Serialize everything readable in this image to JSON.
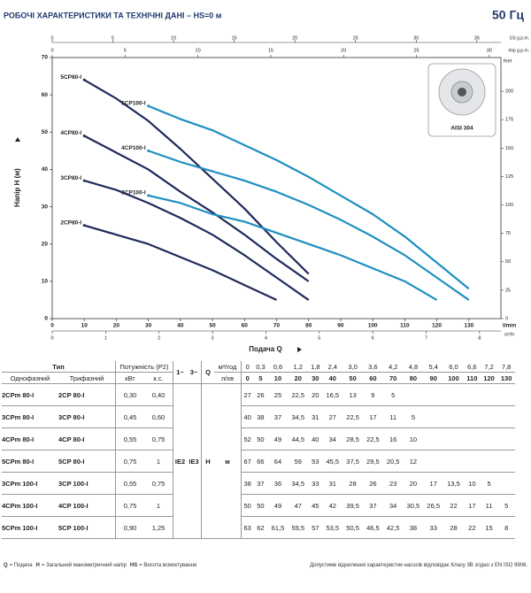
{
  "header": {
    "title": "РОБОЧІ ХАРАКТЕРИСТИКИ ТА ТЕХНІЧНІ ДАНІ – HS=0 м",
    "frequency": "50 Гц"
  },
  "chart_data": {
    "type": "line",
    "x_label": "Подача Q",
    "y_label": "Напір H (м)",
    "x_unit": "l/min",
    "xlim": [
      0,
      140
    ],
    "xticks": [
      0,
      10,
      20,
      30,
      40,
      50,
      60,
      70,
      80,
      90,
      100,
      110,
      120,
      130
    ],
    "ylim": [
      0,
      70
    ],
    "yticks": [
      0,
      10,
      20,
      30,
      40,
      50,
      60,
      70
    ],
    "grid": false,
    "secondary_axes": [
      {
        "position": "top",
        "unit": "US g.p.m.",
        "lim": [
          0,
          36.98
        ],
        "ticks": [
          0,
          5,
          10,
          15,
          20,
          25,
          30,
          35
        ]
      },
      {
        "position": "top",
        "unit": "Imp g.p.m.",
        "lim": [
          0,
          30.8
        ],
        "ticks": [
          0,
          5,
          10,
          15,
          20,
          25,
          30
        ]
      },
      {
        "position": "right",
        "unit": "feet",
        "lim": [
          0,
          229.66
        ],
        "ticks": [
          0,
          25,
          50,
          75,
          100,
          125,
          150,
          175,
          200
        ]
      },
      {
        "position": "bottom",
        "unit": "m³/h",
        "lim": [
          0,
          8.4
        ],
        "ticks": [
          0,
          1,
          2,
          3,
          4,
          5,
          6,
          7,
          8
        ]
      }
    ],
    "image_caption": "AISI 304",
    "series": [
      {
        "name": "5CP80-I",
        "color": "#1f2a5c",
        "x": [
          10,
          20,
          30,
          40,
          50,
          60,
          70,
          80
        ],
        "values": [
          64,
          59,
          53,
          45.5,
          37.5,
          29.5,
          20.5,
          12
        ]
      },
      {
        "name": "4CP80-I",
        "color": "#1f2a5c",
        "x": [
          10,
          20,
          30,
          40,
          50,
          60,
          70,
          80
        ],
        "values": [
          49,
          44.5,
          40,
          34,
          28.5,
          22.5,
          16,
          10
        ]
      },
      {
        "name": "3CP80-I",
        "color": "#1f2a5c",
        "x": [
          10,
          20,
          30,
          40,
          50,
          60,
          70,
          80
        ],
        "values": [
          37,
          34.5,
          31,
          27,
          22.5,
          17,
          11,
          5
        ]
      },
      {
        "name": "2CP80-I",
        "color": "#1f2a5c",
        "x": [
          10,
          20,
          30,
          40,
          50,
          60,
          70
        ],
        "values": [
          25,
          22.5,
          20,
          16.5,
          13,
          9,
          5
        ]
      },
      {
        "name": "5CP100-I",
        "color": "#1e8fc0",
        "x": [
          30,
          40,
          50,
          60,
          70,
          80,
          90,
          100,
          110,
          120,
          130
        ],
        "values": [
          57,
          53.5,
          50.5,
          46.5,
          42.5,
          38,
          33,
          28,
          22,
          15,
          8
        ]
      },
      {
        "name": "4CP100-I",
        "color": "#1e8fc0",
        "x": [
          30,
          40,
          50,
          60,
          70,
          80,
          90,
          100,
          110,
          120,
          130
        ],
        "values": [
          45,
          42,
          39.5,
          37,
          34,
          30.5,
          26.5,
          22,
          17,
          11,
          5
        ]
      },
      {
        "name": "3CP100-I",
        "color": "#1e8fc0",
        "x": [
          30,
          40,
          50,
          60,
          70,
          80,
          90,
          100,
          110,
          120
        ],
        "values": [
          33,
          31,
          28,
          26,
          23,
          20,
          17,
          13.5,
          10,
          5
        ]
      }
    ]
  },
  "table": {
    "type_header": "Тип",
    "power_header": "Потужність (P2)",
    "phase": [
      "1~",
      "3~"
    ],
    "q_header": "Q",
    "q_m3h_unit": "м³/год",
    "q_lmin_unit": "л/хв",
    "single_phase": "Однофазний",
    "three_phase": "Трифазний",
    "kw": "кВт",
    "hp": "к.с.",
    "q_m3h": [
      "0",
      "0,3",
      "0,6",
      "1,2",
      "1,8",
      "2,4",
      "3,0",
      "3,6",
      "4,2",
      "4,8",
      "5,4",
      "6,0",
      "6,6",
      "7,2",
      "7,8"
    ],
    "q_lmin": [
      0,
      5,
      10,
      20,
      30,
      40,
      50,
      60,
      70,
      80,
      90,
      100,
      110,
      120,
      130
    ],
    "efficiency": [
      "IE2",
      "IE3"
    ],
    "h_label": "H",
    "h_unit": "м",
    "rows": [
      {
        "single": "2CPm 80-I",
        "three": "2CP 80-I",
        "kw": "0,30",
        "hp": "0,40",
        "heads": [
          "27",
          "26",
          "25",
          "22,5",
          "20",
          "16,5",
          "13",
          "9",
          "5"
        ]
      },
      {
        "single": "3CPm 80-I",
        "three": "3CP 80-I",
        "kw": "0,45",
        "hp": "0,60",
        "heads": [
          "40",
          "38",
          "37",
          "34,5",
          "31",
          "27",
          "22,5",
          "17",
          "11",
          "5"
        ]
      },
      {
        "single": "4CPm 80-I",
        "three": "4CP 80-I",
        "kw": "0,55",
        "hp": "0,75",
        "heads": [
          "52",
          "50",
          "49",
          "44,5",
          "40",
          "34",
          "28,5",
          "22,5",
          "16",
          "10"
        ]
      },
      {
        "single": "5CPm 80-I",
        "three": "5CP 80-I",
        "kw": "0,75",
        "hp": "1",
        "heads": [
          "67",
          "66",
          "64",
          "59",
          "53",
          "45,5",
          "37,5",
          "29,5",
          "20,5",
          "12"
        ]
      },
      {
        "single": "3CPm 100-I",
        "three": "3CP 100-I",
        "kw": "0,55",
        "hp": "0,75",
        "heads": [
          "38",
          "37",
          "36",
          "34,5",
          "33",
          "31",
          "28",
          "26",
          "23",
          "20",
          "17",
          "13,5",
          "10",
          "5"
        ]
      },
      {
        "single": "4CPm 100-I",
        "three": "4CP 100-I",
        "kw": "0,75",
        "hp": "1",
        "heads": [
          "50",
          "50",
          "49",
          "47",
          "45",
          "42",
          "39,5",
          "37",
          "34",
          "30,5",
          "26,5",
          "22",
          "17",
          "11",
          "5"
        ]
      },
      {
        "single": "5CPm 100-I",
        "three": "5CP 100-I",
        "kw": "0,90",
        "hp": "1,25",
        "heads": [
          "63",
          "62",
          "61,5",
          "59,5",
          "57",
          "53,5",
          "50,5",
          "46,5",
          "42,5",
          "38",
          "33",
          "28",
          "22",
          "15",
          "8"
        ]
      }
    ]
  },
  "footer": {
    "legend": [
      {
        "symbol": "Q",
        "text": "= Подача"
      },
      {
        "symbol": "H",
        "text": "= Загальний манометричний напір"
      },
      {
        "symbol": "HS",
        "text": "= Висота всмоктування"
      }
    ],
    "note": "Допустиме відхилення характеристик насосів відповідає Класу 3B згідно з EN ISO 9906."
  }
}
